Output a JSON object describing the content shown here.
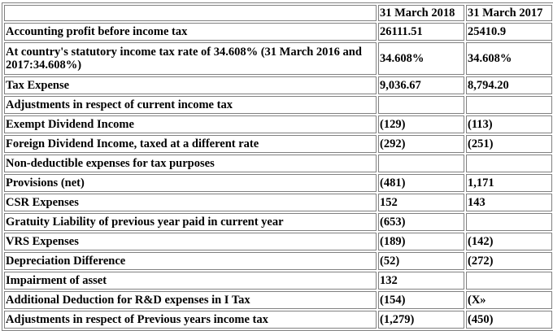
{
  "table": {
    "header": [
      "",
      "31 March 2018",
      "31 March 2017"
    ],
    "rows": [
      {
        "label": "Accounting profit before income tax",
        "y2018": "26111.51",
        "y2017": "25410.9"
      },
      {
        "label": "At country's statutory income tax rate of 34.608% (31 March 2016 and 2017:34.608%)",
        "y2018": "34.608%",
        "y2017": "34.608%"
      },
      {
        "label": "Tax Expense",
        "y2018": "9,036.67",
        "y2017": "8,794.20"
      },
      {
        "label": "Adjustments in respect of current income tax",
        "y2018": "",
        "y2017": ""
      },
      {
        "label": "Exempt Dividend Income",
        "y2018": "(129)",
        "y2017": "(113)"
      },
      {
        "label": "Foreign Dividend Income, taxed at a different rate",
        "y2018": "(292)",
        "y2017": "(251)"
      },
      {
        "label": "Non-deductible expenses for tax purposes",
        "y2018": "",
        "y2017": ""
      },
      {
        "label": "Provisions (net)",
        "y2018": "(481)",
        "y2017": "1,171"
      },
      {
        "label": "CSR Expenses",
        "y2018": "152",
        "y2017": "143"
      },
      {
        "label": "Gratuity Liability of previous year paid in current year",
        "y2018": "(653)",
        "y2017": ""
      },
      {
        "label": "VRS Expenses",
        "y2018": "(189)",
        "y2017": "(142)"
      },
      {
        "label": "Depreciation Difference",
        "y2018": "(52)",
        "y2017": "(272)"
      },
      {
        "label": "Impairment of asset",
        "y2018": "132",
        "y2017": ""
      },
      {
        "label": "Additional Deduction for R&D expenses in I Tax",
        "y2018": "(154)",
        "y2017": "(X»"
      },
      {
        "label": "Adjustments in respect of Previous years income tax",
        "y2018": "(1,279)",
        "y2017": "(450)"
      }
    ]
  }
}
